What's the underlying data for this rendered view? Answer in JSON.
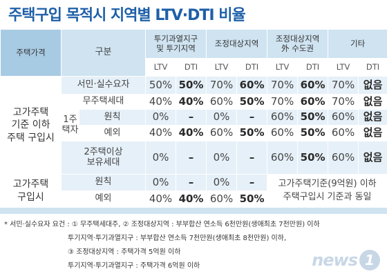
{
  "title": "주택구입 목적시 지역별 LTV·DTI 비율",
  "header": {
    "col_purchase": "주택가격",
    "col_type": "구분",
    "region1": "투기과열지구\n및 투기지역",
    "region2": "조정대상지역",
    "region3": "조정대상지역\n外 수도권",
    "region4": "기타",
    "ltv": "LTV",
    "dti": "DTI"
  },
  "groups": {
    "g1": "고가주택\n기준 이하\n주택 구입시",
    "g2": "고가주택\n구입시",
    "one_house": "1주택자"
  },
  "rows": [
    {
      "label": "서민·실수요자",
      "values": [
        "50%",
        "50%",
        "70%",
        "60%",
        "70%",
        "60%",
        "70%",
        "없음"
      ]
    },
    {
      "label": "무주택세대",
      "values": [
        "40%",
        "40%",
        "60%",
        "50%",
        "70%",
        "60%",
        "70%",
        "없음"
      ]
    },
    {
      "label": "원칙",
      "values": [
        "0%",
        "–",
        "0%",
        "–",
        "60%",
        "50%",
        "60%",
        "없음"
      ]
    },
    {
      "label": "예외",
      "values": [
        "40%",
        "40%",
        "60%",
        "50%",
        "60%",
        "50%",
        "60%",
        "없음"
      ]
    },
    {
      "label": "2주택이상\n보유세대",
      "values": [
        "0%",
        "–",
        "0%",
        "–",
        "60%",
        "50%",
        "60%",
        "없음"
      ]
    },
    {
      "label": "원칙",
      "values": [
        "0%",
        "–",
        "0%",
        "–"
      ]
    },
    {
      "label": "예외",
      "values": [
        "40%",
        "40%",
        "60%",
        "50%"
      ]
    }
  ],
  "merged_note": "고가주택기준(9억원) 이하\n주택구입시 기준과 동일",
  "notes": [
    "* 서민·실수요자 요건 : ① 무주택세대주, ② 조정대상지역 : 부부합산 연소득 6천만원(생애최초 7천만원) 이하",
    "투기지역·투기과열지구 : 부부합산 연소득 7천만원(생애최초 8천만원) 이하,",
    "③ 조정대상지역 : 주택가격 5억원 이하",
    "투기지역·투기과열지구 : 주택가격 6억원 이하"
  ],
  "logo": {
    "word": "news",
    "mark": "1"
  }
}
